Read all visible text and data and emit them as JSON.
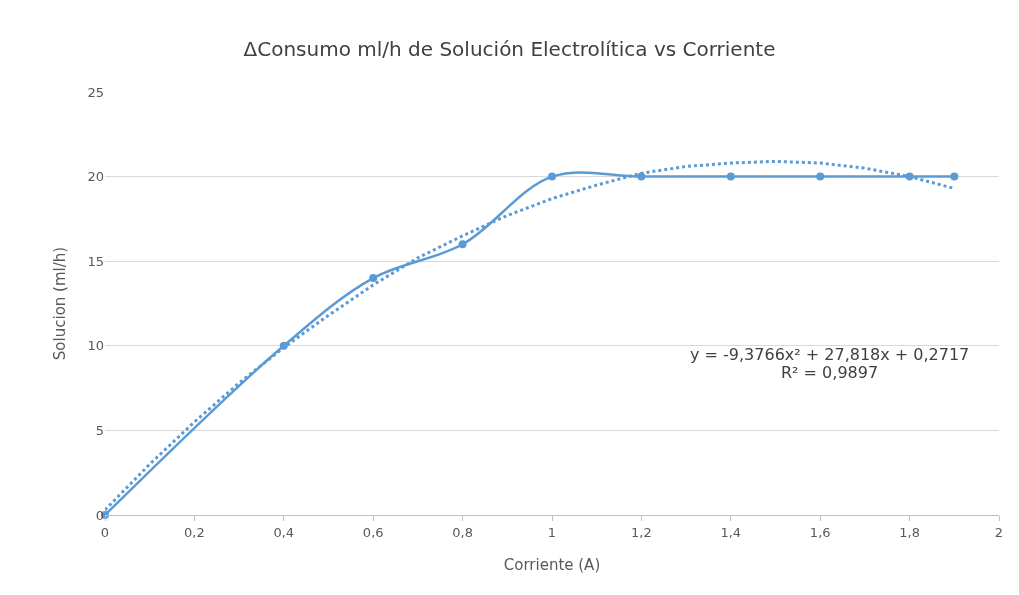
{
  "chart_data": {
    "type": "line",
    "title": "ΔConsumo ml/h de Solución Electrolítica vs Corriente",
    "xlabel": "Corriente (A)",
    "ylabel": "Solucion (ml/h)",
    "series": [
      {
        "color": "#5b9bd5",
        "marker": "circle",
        "line_style": "solid",
        "x": [
          0,
          0.4,
          0.6,
          0.8,
          1,
          1.2,
          1.4,
          1.6,
          1.8,
          1.9
        ],
        "values": [
          0,
          10,
          14,
          16,
          20,
          20,
          20,
          20,
          20,
          20
        ]
      },
      {
        "color": "#5b9bd5",
        "marker": "none",
        "line_style": "dotted",
        "x": [
          0,
          0.1,
          0.2,
          0.3,
          0.4,
          0.5,
          0.6,
          0.7,
          0.8,
          0.9,
          1,
          1.1,
          1.2,
          1.3,
          1.4,
          1.5,
          1.6,
          1.7,
          1.8,
          1.9
        ],
        "values": [
          0.3,
          3.0,
          5.5,
          7.8,
          9.9,
          11.8,
          13.6,
          15.2,
          16.5,
          17.7,
          18.7,
          19.5,
          20.2,
          20.6,
          20.8,
          20.9,
          20.8,
          20.5,
          20.0,
          19.3
        ]
      }
    ],
    "annotations": [
      "y = -9,3766x² + 27,818x + 0,2717",
      "R² = 0,9897"
    ],
    "xlim": [
      0,
      2
    ],
    "xticks": [
      0,
      {
        "value": 0.2,
        "label": "0,2"
      },
      {
        "value": 0.4,
        "label": "0,4"
      },
      {
        "value": 0.6,
        "label": "0,6"
      },
      {
        "value": 0.8,
        "label": "0,8"
      },
      1,
      {
        "value": 1.2,
        "label": "1,2"
      },
      {
        "value": 1.4,
        "label": "1,4"
      },
      {
        "value": 1.6,
        "label": "1,6"
      },
      {
        "value": 1.8,
        "label": "1,8"
      },
      2
    ],
    "ylim": [
      0,
      25
    ],
    "yticks": [
      0,
      5,
      10,
      15,
      20,
      25
    ],
    "grid": "y"
  }
}
